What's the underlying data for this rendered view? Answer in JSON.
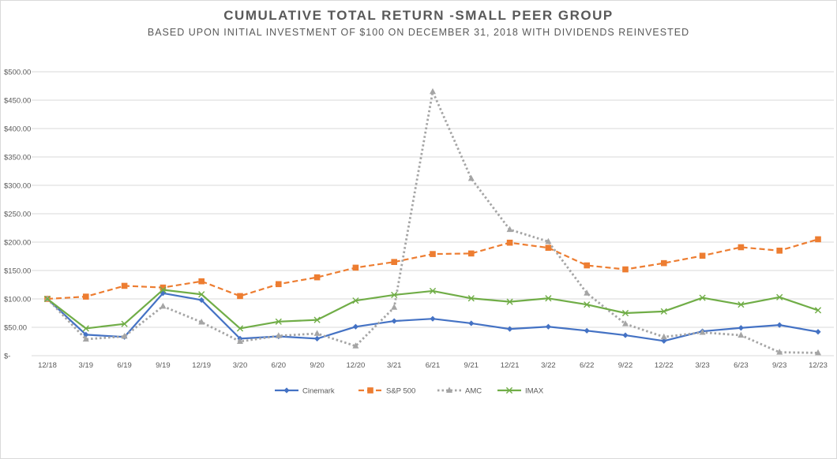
{
  "chart_data": {
    "type": "line",
    "title": "CUMULATIVE TOTAL RETURN -SMALL PEER GROUP",
    "subtitle": "BASED UPON INITIAL INVESTMENT OF $100 ON DECEMBER 31, 2018 WITH DIVIDENDS REINVESTED",
    "xlabel": "",
    "ylabel": "",
    "ylim": [
      0,
      500
    ],
    "yticks": [
      0,
      50,
      100,
      150,
      200,
      250,
      300,
      350,
      400,
      450,
      500
    ],
    "ytick_labels": [
      "$-",
      "$50.00",
      "$100.00",
      "$150.00",
      "$200.00",
      "$250.00",
      "$300.00",
      "$350.00",
      "$400.00",
      "$450.00",
      "$500.00"
    ],
    "grid": true,
    "legend_position": "bottom",
    "categories": [
      "12/18",
      "3/19",
      "6/19",
      "9/19",
      "12/19",
      "3/20",
      "6/20",
      "9/20",
      "12/20",
      "3/21",
      "6/21",
      "9/21",
      "12/21",
      "3/22",
      "6/22",
      "9/22",
      "12/22",
      "3/23",
      "6/23",
      "9/23",
      "12/23"
    ],
    "series": [
      {
        "name": "Cinemark",
        "color": "#4472c4",
        "marker": "diamond",
        "dash": "solid",
        "values": [
          100,
          37,
          33,
          110,
          98,
          30,
          34,
          30,
          51,
          61,
          65,
          57,
          47,
          51,
          44,
          36,
          26,
          43,
          49,
          54,
          42
        ]
      },
      {
        "name": "S&P 500",
        "color": "#ed7d31",
        "marker": "square",
        "dash": "dashed",
        "values": [
          100,
          104,
          123,
          120,
          131,
          105,
          126,
          138,
          155,
          165,
          179,
          180,
          199,
          190,
          159,
          152,
          163,
          176,
          191,
          185,
          205
        ]
      },
      {
        "name": "AMC",
        "color": "#a5a5a5",
        "marker": "triangle",
        "dash": "dotted",
        "values": [
          100,
          29,
          34,
          87,
          59,
          25,
          35,
          39,
          17,
          85,
          465,
          312,
          222,
          201,
          110,
          56,
          33,
          41,
          36,
          6,
          5
        ]
      },
      {
        "name": "IMAX",
        "color": "#70ad47",
        "marker": "x",
        "dash": "solid",
        "values": [
          100,
          48,
          56,
          116,
          108,
          48,
          60,
          63,
          97,
          107,
          114,
          101,
          95,
          101,
          90,
          75,
          78,
          102,
          90,
          103,
          80
        ]
      }
    ]
  }
}
